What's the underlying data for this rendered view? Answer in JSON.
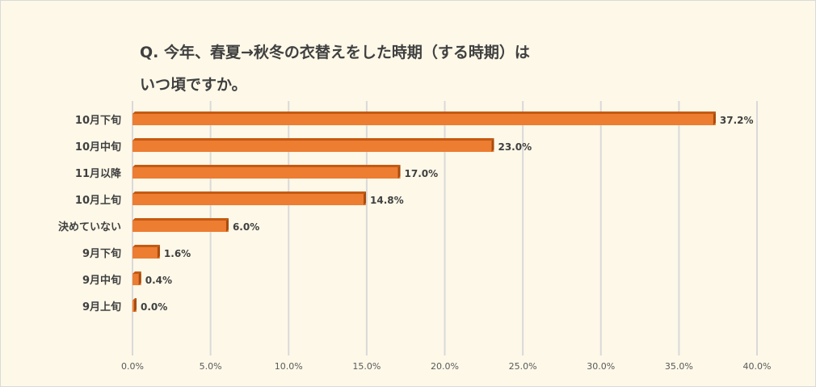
{
  "chart_data": {
    "type": "bar",
    "orientation": "horizontal",
    "title_line1": "Q. 今年、春夏→秋冬の衣替えをした時期（する時期）は",
    "title_line2": "いつ頃ですか。",
    "categories": [
      "10月下旬",
      "10月中旬",
      "11月以降",
      "10月上旬",
      "決めていない",
      "9月下旬",
      "9月中旬",
      "9月上旬"
    ],
    "values": [
      37.2,
      23.0,
      17.0,
      14.8,
      6.0,
      1.6,
      0.4,
      0.0
    ],
    "value_labels": [
      "37.2%",
      "23.0%",
      "17.0%",
      "14.8%",
      "6.0%",
      "1.6%",
      "0.4%",
      "0.0%"
    ],
    "xlim": [
      0,
      40
    ],
    "xticks": [
      0,
      5,
      10,
      15,
      20,
      25,
      30,
      35,
      40
    ],
    "xtick_labels": [
      "0.0%",
      "5.0%",
      "10.0%",
      "15.0%",
      "20.0%",
      "25.0%",
      "30.0%",
      "35.0%",
      "40.0%"
    ],
    "grid": true,
    "bar_color": "#ed7d31",
    "bar_top_color": "#c55a11",
    "background": "#fdf8e8"
  }
}
